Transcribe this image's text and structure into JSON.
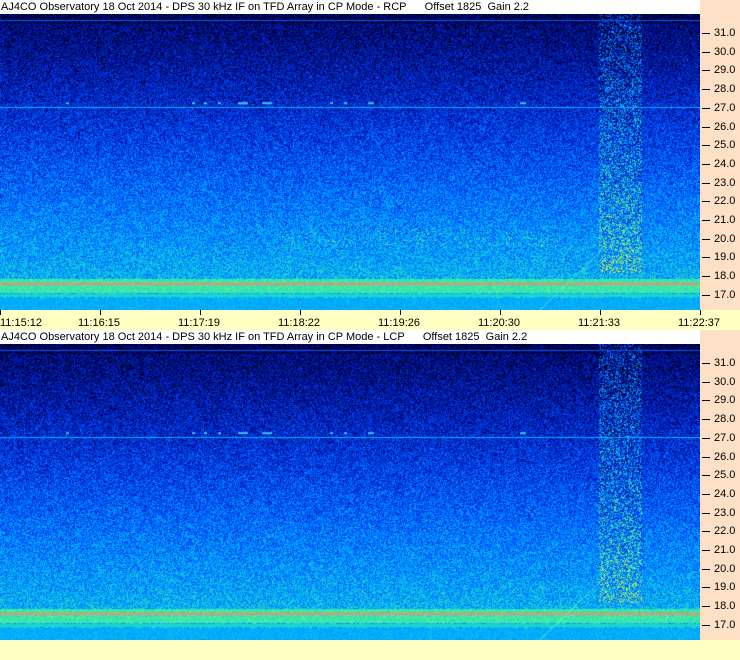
{
  "panels": [
    {
      "title": "AJ4CO Observatory 18 Oct 2014 - DPS 30 kHz IF on TFD Array in CP Mode - RCP",
      "offset": "Offset 1825",
      "gain": "Gain 2.2",
      "polarization": "RCP"
    },
    {
      "title": "AJ4CO Observatory 18 Oct 2014 - DPS 30 kHz IF on TFD Array in CP Mode - LCP",
      "offset": "Offset 1825",
      "gain": "Gain 2.2",
      "polarization": "LCP"
    }
  ],
  "chart_data": {
    "type": "heatmap",
    "y_ticks": [
      "31.0",
      "30.0",
      "29.0",
      "28.0",
      "27.0",
      "26.0",
      "25.0",
      "24.0",
      "23.0",
      "22.0",
      "21.0",
      "20.0",
      "19.0",
      "18.0",
      "17.0"
    ],
    "ylim": [
      16.7,
      31.8
    ],
    "x_ticks": [
      "11:15:12",
      "11:16:15",
      "11:17:19",
      "11:18:22",
      "11:19:26",
      "11:20:30",
      "11:21:33",
      "11:22:37"
    ],
    "colormap": [
      "#000020",
      "#0010a0",
      "#0050ff",
      "#00b0ff",
      "#30e8b0",
      "#f0f040",
      "#ff4080"
    ]
  }
}
